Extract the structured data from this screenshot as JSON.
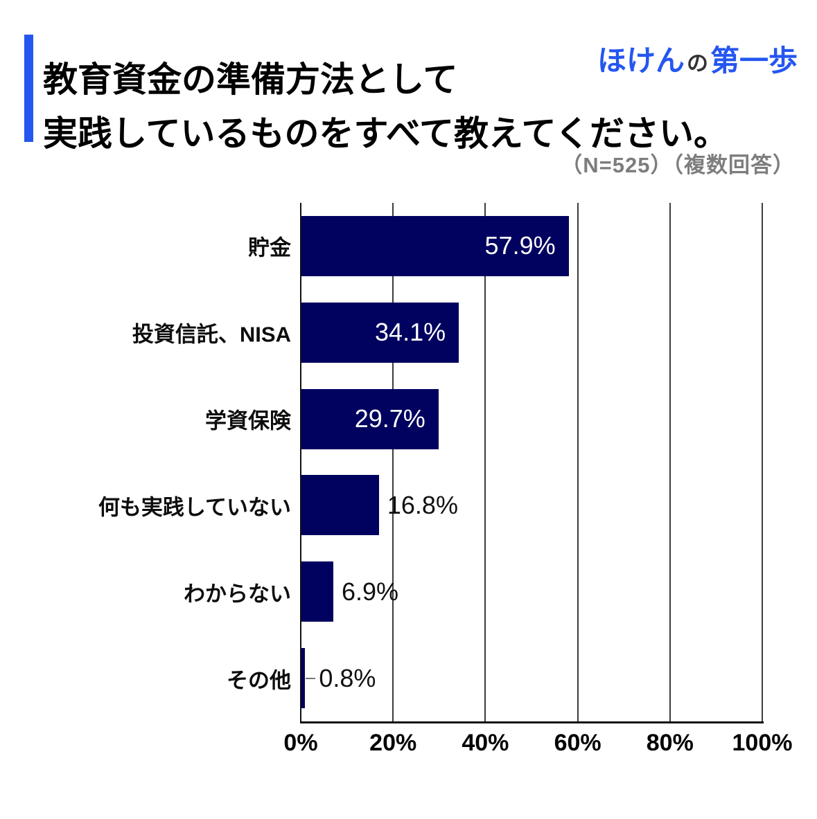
{
  "header": {
    "title_line1": "教育資金の準備方法として",
    "title_line2": "実践しているものをすべて教えてください。",
    "logo": {
      "part1": "ほけん",
      "part2": "の",
      "part3": "第一歩"
    },
    "note": "（N=525）（複数回答）"
  },
  "colors": {
    "bar": "#01015f",
    "accent_blue": "#2456f0",
    "logo_blue": "#2456f0",
    "note_gray": "#7d7d7d"
  },
  "chart_data": {
    "type": "bar",
    "orientation": "horizontal",
    "title": "教育資金の準備方法として実践しているものをすべて教えてください。",
    "sample_note": "（N=525）（複数回答）",
    "categories": [
      "貯金",
      "投資信託、NISA",
      "学資保険",
      "何も実践していない",
      "わからない",
      "その他"
    ],
    "values": [
      57.9,
      34.1,
      29.7,
      16.8,
      6.9,
      0.8
    ],
    "value_labels": [
      "57.9%",
      "34.1%",
      "29.7%",
      "16.8%",
      "6.9%",
      "0.8%"
    ],
    "label_placement": [
      "inside",
      "inside",
      "inside",
      "outside",
      "outside",
      "outside"
    ],
    "x_ticks": [
      "0%",
      "20%",
      "40%",
      "60%",
      "80%",
      "100%"
    ],
    "xlim": [
      0,
      100
    ],
    "xlabel": "",
    "ylabel": "",
    "grid": true,
    "legend": false
  }
}
